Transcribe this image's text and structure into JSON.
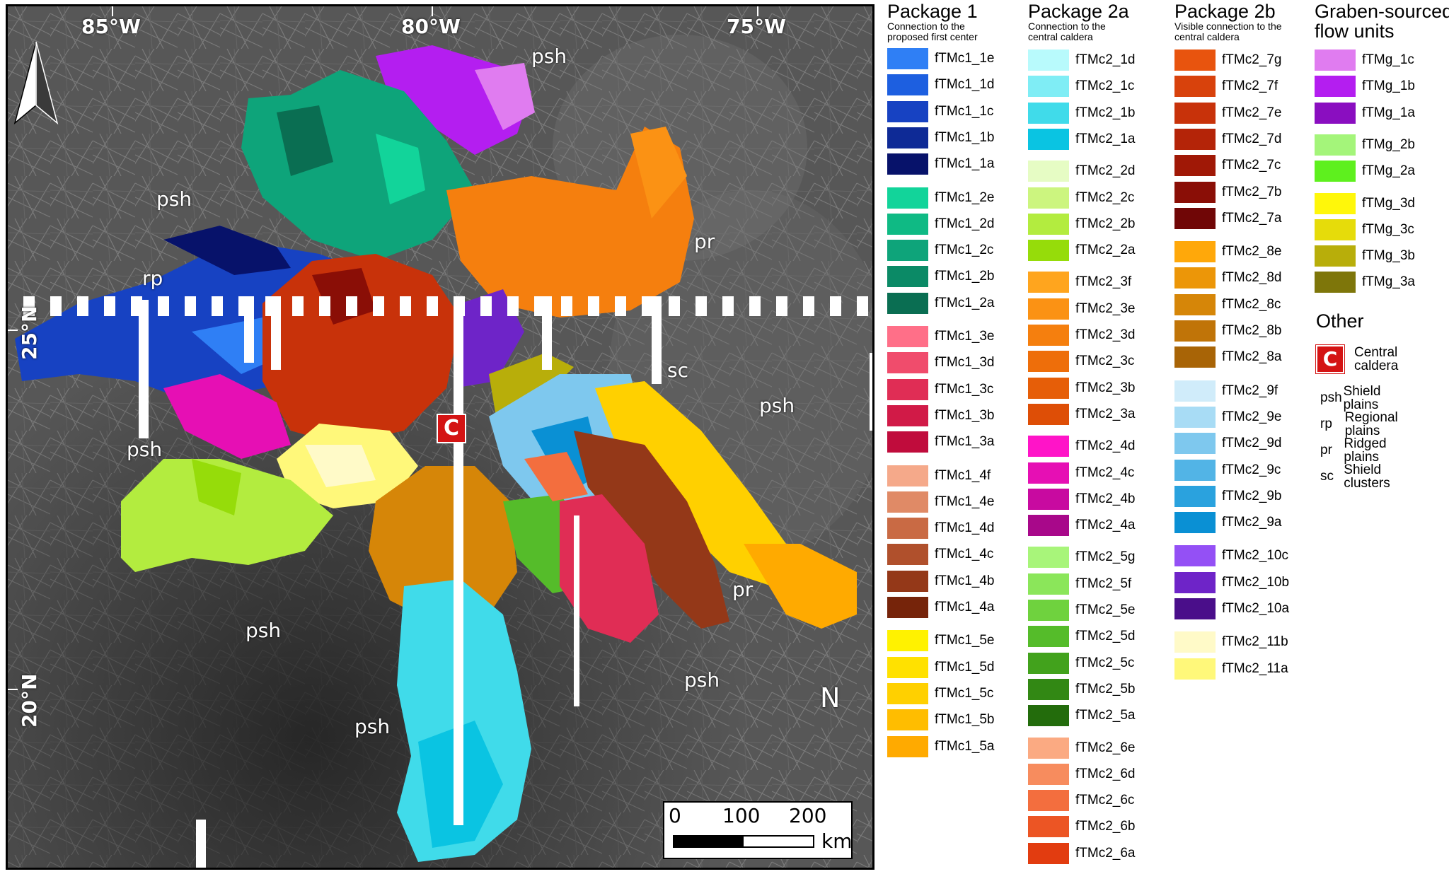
{
  "map": {
    "longitude_labels": [
      "85°W",
      "80°W",
      "75°W"
    ],
    "latitude_labels": [
      "25°N",
      "20°N"
    ],
    "unit_labels": [
      "psh",
      "psh",
      "rp",
      "pr",
      "sc",
      "psh",
      "psh",
      "psh",
      "pr",
      "psh",
      "psh"
    ],
    "caldera_symbol": "C",
    "north_label": "N",
    "scale_bar": {
      "ticks": [
        "0",
        "100",
        "200"
      ],
      "unit": "km"
    }
  },
  "legend": {
    "package1": {
      "title": "Package 1",
      "subtitle_lines": [
        "Connection to the",
        "proposed first center"
      ],
      "groups": [
        [
          {
            "label": "fTMc1_1e",
            "color": "#2f7ff5"
          },
          {
            "label": "fTMc1_1d",
            "color": "#1d5fe0"
          },
          {
            "label": "fTMc1_1c",
            "color": "#1742c2"
          },
          {
            "label": "fTMc1_1b",
            "color": "#0e2a96"
          },
          {
            "label": "fTMc1_1a",
            "color": "#07126a"
          }
        ],
        [
          {
            "label": "fTMc1_2e",
            "color": "#12d49a"
          },
          {
            "label": "fTMc1_2d",
            "color": "#0fba84"
          },
          {
            "label": "fTMc1_2c",
            "color": "#0ea47a"
          },
          {
            "label": "fTMc1_2b",
            "color": "#0b8a66"
          },
          {
            "label": "fTMc1_2a",
            "color": "#0a6e52"
          }
        ],
        [
          {
            "label": "fTMc1_3e",
            "color": "#ff6f88"
          },
          {
            "label": "fTMc1_3d",
            "color": "#f04c6c"
          },
          {
            "label": "fTMc1_3c",
            "color": "#e02d55"
          },
          {
            "label": "fTMc1_3b",
            "color": "#d11a47"
          },
          {
            "label": "fTMc1_3a",
            "color": "#c00c3c"
          }
        ],
        [
          {
            "label": "fTMc1_4f",
            "color": "#f5a98a"
          },
          {
            "label": "fTMc1_4e",
            "color": "#e08a66"
          },
          {
            "label": "fTMc1_4d",
            "color": "#c96a44"
          },
          {
            "label": "fTMc1_4c",
            "color": "#b0502c"
          },
          {
            "label": "fTMc1_4b",
            "color": "#943818"
          },
          {
            "label": "fTMc1_4a",
            "color": "#76240a"
          }
        ],
        [
          {
            "label": "fTMc1_5e",
            "color": "#fff200"
          },
          {
            "label": "fTMc1_5d",
            "color": "#ffe100"
          },
          {
            "label": "fTMc1_5c",
            "color": "#ffd000"
          },
          {
            "label": "fTMc1_5b",
            "color": "#ffbd00"
          },
          {
            "label": "fTMc1_5a",
            "color": "#ffaa00"
          }
        ]
      ]
    },
    "package2a": {
      "title": "Package 2a",
      "subtitle_lines": [
        "Connection to the",
        "central caldera"
      ],
      "groups": [
        [
          {
            "label": "fTMc2_1d",
            "color": "#b8fafc"
          },
          {
            "label": "fTMc2_1c",
            "color": "#7fedf5"
          },
          {
            "label": "fTMc2_1b",
            "color": "#40dbea"
          },
          {
            "label": "fTMc2_1a",
            "color": "#0ac4e2"
          }
        ],
        [
          {
            "label": "fTMc2_2d",
            "color": "#e6fcc4"
          },
          {
            "label": "fTMc2_2c",
            "color": "#ccf57f"
          },
          {
            "label": "fTMc2_2b",
            "color": "#b3ec3f"
          },
          {
            "label": "fTMc2_2a",
            "color": "#96dc0a"
          }
        ],
        [
          {
            "label": "fTMc2_3f",
            "color": "#ffa51e"
          },
          {
            "label": "fTMc2_3e",
            "color": "#fb9214"
          },
          {
            "label": "fTMc2_3d",
            "color": "#f57f0e"
          },
          {
            "label": "fTMc2_3c",
            "color": "#ee6e0a"
          },
          {
            "label": "fTMc2_3b",
            "color": "#e65e08"
          },
          {
            "label": "fTMc2_3a",
            "color": "#de4e06"
          }
        ],
        [
          {
            "label": "fTMc2_4d",
            "color": "#ff14c8"
          },
          {
            "label": "fTMc2_4c",
            "color": "#e60fb4"
          },
          {
            "label": "fTMc2_4b",
            "color": "#c80aa0"
          },
          {
            "label": "fTMc2_4a",
            "color": "#a8088a"
          }
        ],
        [
          {
            "label": "fTMc2_5g",
            "color": "#a8f57a"
          },
          {
            "label": "fTMc2_5f",
            "color": "#8be65a"
          },
          {
            "label": "fTMc2_5e",
            "color": "#6fd23e"
          },
          {
            "label": "fTMc2_5d",
            "color": "#55bc2a"
          },
          {
            "label": "fTMc2_5c",
            "color": "#42a21c"
          },
          {
            "label": "fTMc2_5b",
            "color": "#328814"
          },
          {
            "label": "fTMc2_5a",
            "color": "#236c0c"
          }
        ],
        [
          {
            "label": "fTMc2_6e",
            "color": "#fbaa82"
          },
          {
            "label": "fTMc2_6d",
            "color": "#f78c5e"
          },
          {
            "label": "fTMc2_6c",
            "color": "#f36e3e"
          },
          {
            "label": "fTMc2_6b",
            "color": "#ec5524"
          },
          {
            "label": "fTMc2_6a",
            "color": "#e23c10"
          }
        ]
      ]
    },
    "package2b": {
      "title": "Package 2b",
      "subtitle_lines": [
        "Visible connection to the",
        "central caldera"
      ],
      "groups": [
        [
          {
            "label": "fTMc2_7g",
            "color": "#e8540e"
          },
          {
            "label": "fTMc2_7f",
            "color": "#d8420c"
          },
          {
            "label": "fTMc2_7e",
            "color": "#c8320a"
          },
          {
            "label": "fTMc2_7d",
            "color": "#b42408"
          },
          {
            "label": "fTMc2_7c",
            "color": "#a01806"
          },
          {
            "label": "fTMc2_7b",
            "color": "#8a0e06"
          },
          {
            "label": "fTMc2_7a",
            "color": "#700606"
          }
        ],
        [
          {
            "label": "fTMc2_8e",
            "color": "#ffa80a"
          },
          {
            "label": "fTMc2_8d",
            "color": "#ec9608"
          },
          {
            "label": "fTMc2_8c",
            "color": "#d68608"
          },
          {
            "label": "fTMc2_8b",
            "color": "#c07408"
          },
          {
            "label": "fTMc2_8a",
            "color": "#a86406"
          }
        ],
        [
          {
            "label": "fTMc2_9f",
            "color": "#d0ecfa"
          },
          {
            "label": "fTMc2_9e",
            "color": "#a8dcf5"
          },
          {
            "label": "fTMc2_9d",
            "color": "#7ec8ee"
          },
          {
            "label": "fTMc2_9c",
            "color": "#52b4e6"
          },
          {
            "label": "fTMc2_9b",
            "color": "#2aa2de"
          },
          {
            "label": "fTMc2_9a",
            "color": "#0a90d4"
          }
        ],
        [
          {
            "label": "fTMc2_10c",
            "color": "#9450f5"
          },
          {
            "label": "fTMc2_10b",
            "color": "#6e24c8"
          },
          {
            "label": "fTMc2_10a",
            "color": "#4a0e8a"
          }
        ],
        [
          {
            "label": "fTMc2_11b",
            "color": "#fffac8"
          },
          {
            "label": "fTMc2_11a",
            "color": "#fff87a"
          }
        ]
      ]
    },
    "graben": {
      "title_lines": [
        "Graben-sourced",
        "flow units"
      ],
      "groups": [
        [
          {
            "label": "fTMg_1c",
            "color": "#e07cf0"
          },
          {
            "label": "fTMg_1b",
            "color": "#b41ef0"
          },
          {
            "label": "fTMg_1a",
            "color": "#8a0ec0"
          }
        ],
        [
          {
            "label": "fTMg_2b",
            "color": "#a4f57a"
          },
          {
            "label": "fTMg_2a",
            "color": "#5ef01e"
          }
        ],
        [
          {
            "label": "fTMg_3d",
            "color": "#fff70a"
          },
          {
            "label": "fTMg_3c",
            "color": "#e6dc0a"
          },
          {
            "label": "fTMg_3b",
            "color": "#b8ae0a"
          },
          {
            "label": "fTMg_3a",
            "color": "#7e760a"
          }
        ]
      ]
    },
    "other": {
      "title": "Other",
      "caldera_lines": [
        "Central",
        "caldera"
      ],
      "abbreviations": [
        {
          "abbr": "psh",
          "desc": "Shield plains"
        },
        {
          "abbr": "rp",
          "desc": "Regional plains"
        },
        {
          "abbr": "pr",
          "desc": "Ridged plains"
        },
        {
          "abbr": "sc",
          "desc": "Shield clusters"
        }
      ]
    }
  }
}
